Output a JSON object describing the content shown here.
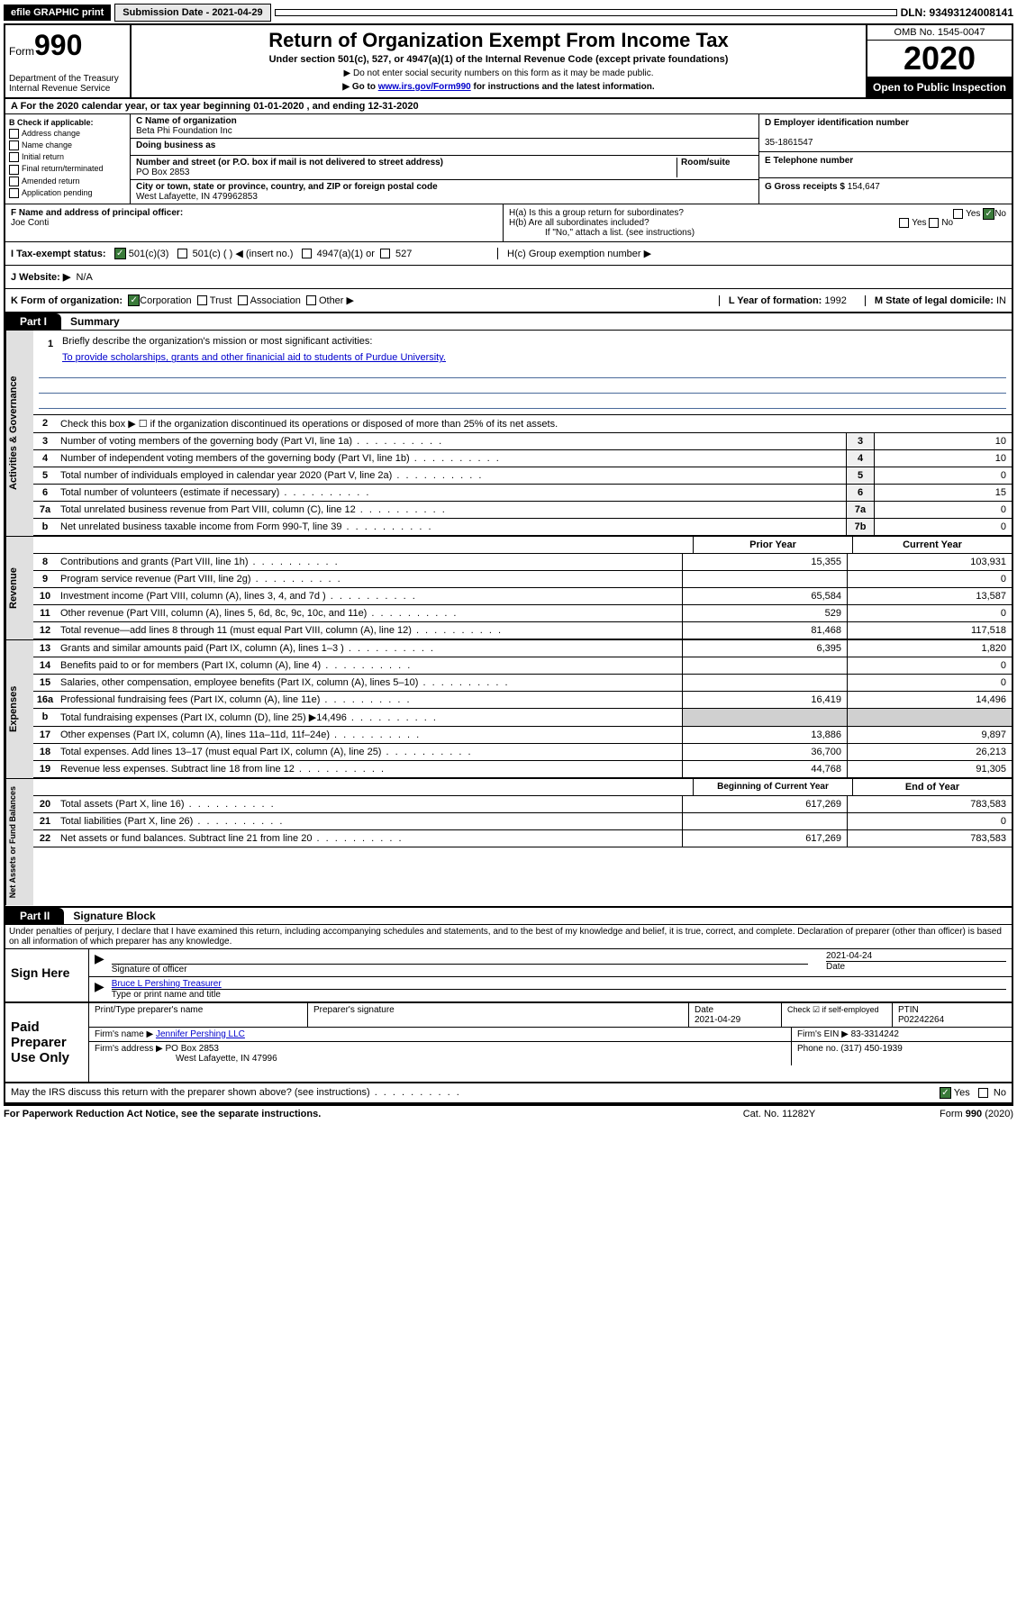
{
  "topbar": {
    "efile": "efile GRAPHIC print",
    "submission": "Submission Date - 2021-04-29",
    "dln": "DLN: 93493124008141"
  },
  "header": {
    "form_prefix": "Form",
    "form_number": "990",
    "title": "Return of Organization Exempt From Income Tax",
    "subtitle": "Under section 501(c), 527, or 4947(a)(1) of the Internal Revenue Code (except private foundations)",
    "note1": "▶ Do not enter social security numbers on this form as it may be made public.",
    "note2_pre": "▶ Go to ",
    "note2_link": "www.irs.gov/Form990",
    "note2_post": " for instructions and the latest information.",
    "dept": "Department of the Treasury\nInternal Revenue Service",
    "omb": "OMB No. 1545-0047",
    "year": "2020",
    "open": "Open to Public Inspection"
  },
  "rowA": "A For the 2020 calendar year, or tax year beginning 01-01-2020    , and ending 12-31-2020",
  "B": {
    "label": "B Check if applicable:",
    "opts": [
      "Address change",
      "Name change",
      "Initial return",
      "Final return/terminated",
      "Amended return",
      "Application pending"
    ]
  },
  "C": {
    "name_lbl": "C Name of organization",
    "name": "Beta Phi Foundation Inc",
    "dba_lbl": "Doing business as",
    "addr_lbl": "Number and street (or P.O. box if mail is not delivered to street address)",
    "room_lbl": "Room/suite",
    "addr": "PO Box 2853",
    "city_lbl": "City or town, state or province, country, and ZIP or foreign postal code",
    "city": "West Lafayette, IN  479962853"
  },
  "D": {
    "lbl": "D Employer identification number",
    "val": "35-1861547"
  },
  "E": {
    "lbl": "E Telephone number"
  },
  "G": {
    "lbl": "G Gross receipts $",
    "val": "154,647"
  },
  "F": {
    "lbl": "F  Name and address of principal officer:",
    "val": "Joe Conti"
  },
  "H": {
    "a": "H(a)  Is this a group return for subordinates?",
    "b": "H(b)  Are all subordinates included?",
    "note": "If \"No,\" attach a list. (see instructions)",
    "c": "H(c)  Group exemption number ▶"
  },
  "I": {
    "lbl": "I    Tax-exempt status:",
    "o1": "501(c)(3)",
    "o2": "501(c) (  ) ◀ (insert no.)",
    "o3": "4947(a)(1) or",
    "o4": "527"
  },
  "J": {
    "lbl": "J   Website: ▶",
    "val": "N/A"
  },
  "K": {
    "lbl": "K Form of organization:",
    "opts": [
      "Corporation",
      "Trust",
      "Association",
      "Other ▶"
    ]
  },
  "L": {
    "lbl": "L Year of formation:",
    "val": "1992"
  },
  "M": {
    "lbl": "M State of legal domicile:",
    "val": "IN"
  },
  "part1": {
    "tab": "Part I",
    "title": "Summary"
  },
  "vtabs": {
    "gov": "Activities & Governance",
    "rev": "Revenue",
    "exp": "Expenses",
    "net": "Net Assets or Fund Balances"
  },
  "mission": {
    "lbl": "Briefly describe the organization's mission or most significant activities:",
    "txt": "To provide scholarships, grants and other finanicial aid to students of Purdue University."
  },
  "line2": "Check this box ▶ ☐  if the organization discontinued its operations or disposed of more than 25% of its net assets.",
  "lines_single": [
    {
      "n": "3",
      "d": "Number of voting members of the governing body (Part VI, line 1a)",
      "box": "3",
      "v": "10"
    },
    {
      "n": "4",
      "d": "Number of independent voting members of the governing body (Part VI, line 1b)",
      "box": "4",
      "v": "10"
    },
    {
      "n": "5",
      "d": "Total number of individuals employed in calendar year 2020 (Part V, line 2a)",
      "box": "5",
      "v": "0"
    },
    {
      "n": "6",
      "d": "Total number of volunteers (estimate if necessary)",
      "box": "6",
      "v": "15"
    },
    {
      "n": "7a",
      "d": "Total unrelated business revenue from Part VIII, column (C), line 12",
      "box": "7a",
      "v": "0"
    },
    {
      "n": "b",
      "d": "Net unrelated business taxable income from Form 990-T, line 39",
      "box": "7b",
      "v": "0"
    }
  ],
  "col_hdrs1": {
    "a": "Prior Year",
    "b": "Current Year"
  },
  "revenue": [
    {
      "n": "8",
      "d": "Contributions and grants (Part VIII, line 1h)",
      "a": "15,355",
      "b": "103,931"
    },
    {
      "n": "9",
      "d": "Program service revenue (Part VIII, line 2g)",
      "a": "",
      "b": "0"
    },
    {
      "n": "10",
      "d": "Investment income (Part VIII, column (A), lines 3, 4, and 7d )",
      "a": "65,584",
      "b": "13,587"
    },
    {
      "n": "11",
      "d": "Other revenue (Part VIII, column (A), lines 5, 6d, 8c, 9c, 10c, and 11e)",
      "a": "529",
      "b": "0"
    },
    {
      "n": "12",
      "d": "Total revenue—add lines 8 through 11 (must equal Part VIII, column (A), line 12)",
      "a": "81,468",
      "b": "117,518"
    }
  ],
  "expenses": [
    {
      "n": "13",
      "d": "Grants and similar amounts paid (Part IX, column (A), lines 1–3 )",
      "a": "6,395",
      "b": "1,820"
    },
    {
      "n": "14",
      "d": "Benefits paid to or for members (Part IX, column (A), line 4)",
      "a": "",
      "b": "0"
    },
    {
      "n": "15",
      "d": "Salaries, other compensation, employee benefits (Part IX, column (A), lines 5–10)",
      "a": "",
      "b": "0"
    },
    {
      "n": "16a",
      "d": "Professional fundraising fees (Part IX, column (A), line 11e)",
      "a": "16,419",
      "b": "14,496"
    },
    {
      "n": "b",
      "d": "Total fundraising expenses (Part IX, column (D), line 25) ▶14,496",
      "a": "",
      "b": "",
      "shade": true
    },
    {
      "n": "17",
      "d": "Other expenses (Part IX, column (A), lines 11a–11d, 11f–24e)",
      "a": "13,886",
      "b": "9,897"
    },
    {
      "n": "18",
      "d": "Total expenses. Add lines 13–17 (must equal Part IX, column (A), line 25)",
      "a": "36,700",
      "b": "26,213"
    },
    {
      "n": "19",
      "d": "Revenue less expenses. Subtract line 18 from line 12",
      "a": "44,768",
      "b": "91,305"
    }
  ],
  "col_hdrs2": {
    "a": "Beginning of Current Year",
    "b": "End of Year"
  },
  "netassets": [
    {
      "n": "20",
      "d": "Total assets (Part X, line 16)",
      "a": "617,269",
      "b": "783,583"
    },
    {
      "n": "21",
      "d": "Total liabilities (Part X, line 26)",
      "a": "",
      "b": "0"
    },
    {
      "n": "22",
      "d": "Net assets or fund balances. Subtract line 21 from line 20",
      "a": "617,269",
      "b": "783,583"
    }
  ],
  "part2": {
    "tab": "Part II",
    "title": "Signature Block"
  },
  "perjury": "Under penalties of perjury, I declare that I have examined this return, including accompanying schedules and statements, and to the best of my knowledge and belief, it is true, correct, and complete. Declaration of preparer (other than officer) is based on all information of which preparer has any knowledge.",
  "sign": {
    "here": "Sign Here",
    "sig_lbl": "Signature of officer",
    "date": "2021-04-24",
    "date_lbl": "Date",
    "name": "Bruce L Pershing  Treasurer",
    "name_lbl": "Type or print name and title"
  },
  "paid": {
    "title": "Paid Preparer Use Only",
    "h1": "Print/Type preparer's name",
    "h2": "Preparer's signature",
    "h3": "Date",
    "date": "2021-04-29",
    "h4": "Check ☑ if self-employed",
    "h5": "PTIN",
    "ptin": "P02242264",
    "firm_lbl": "Firm's name    ▶",
    "firm": "Jennifer Pershing LLC",
    "ein_lbl": "Firm's EIN ▶",
    "ein": "83-3314242",
    "addr_lbl": "Firm's address ▶",
    "addr1": "PO Box 2853",
    "addr2": "West Lafayette, IN  47996",
    "phone_lbl": "Phone no.",
    "phone": "(317) 450-1939"
  },
  "disclose": "May the IRS discuss this return with the preparer shown above? (see instructions)",
  "footer": {
    "left": "For Paperwork Reduction Act Notice, see the separate instructions.",
    "mid": "Cat. No. 11282Y",
    "right": "Form 990 (2020)"
  }
}
